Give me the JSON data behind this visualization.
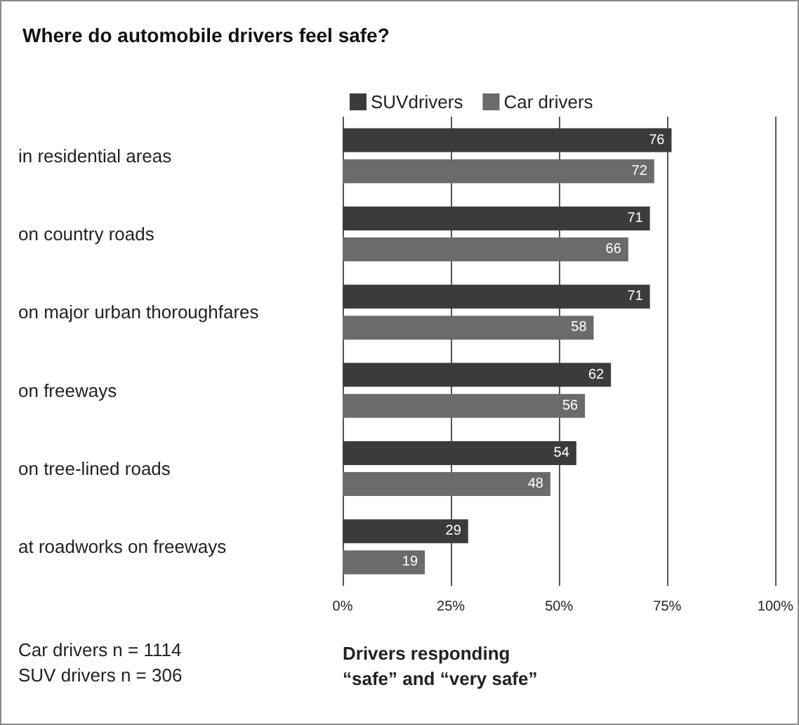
{
  "chart_data": {
    "type": "bar",
    "orientation": "horizontal",
    "title": "Where do automobile drivers feel safe?",
    "categories": [
      "in residential areas",
      "on country roads",
      "on major urban thoroughfares",
      "on freeways",
      "on tree-lined roads",
      "at roadworks on freeways"
    ],
    "series": [
      {
        "name": "SUVdrivers",
        "color": "#3b3b3b",
        "values": [
          76,
          71,
          71,
          62,
          54,
          29
        ]
      },
      {
        "name": "Car drivers",
        "color": "#6b6b6b",
        "values": [
          72,
          66,
          58,
          56,
          48,
          19
        ]
      }
    ],
    "xlim": [
      0,
      100
    ],
    "xticks": [
      {
        "value": 0,
        "label": "0%"
      },
      {
        "value": 25,
        "label": "25%"
      },
      {
        "value": 50,
        "label": "50%"
      },
      {
        "value": 75,
        "label": "75%"
      },
      {
        "value": 100,
        "label": "100%"
      }
    ],
    "xlabel": "Drivers responding\n“safe” and “very safe”",
    "annotations": [
      "Car drivers n = 1114",
      "SUV drivers n = 306"
    ],
    "data_labels": true,
    "grid": "x",
    "legend": "top"
  }
}
